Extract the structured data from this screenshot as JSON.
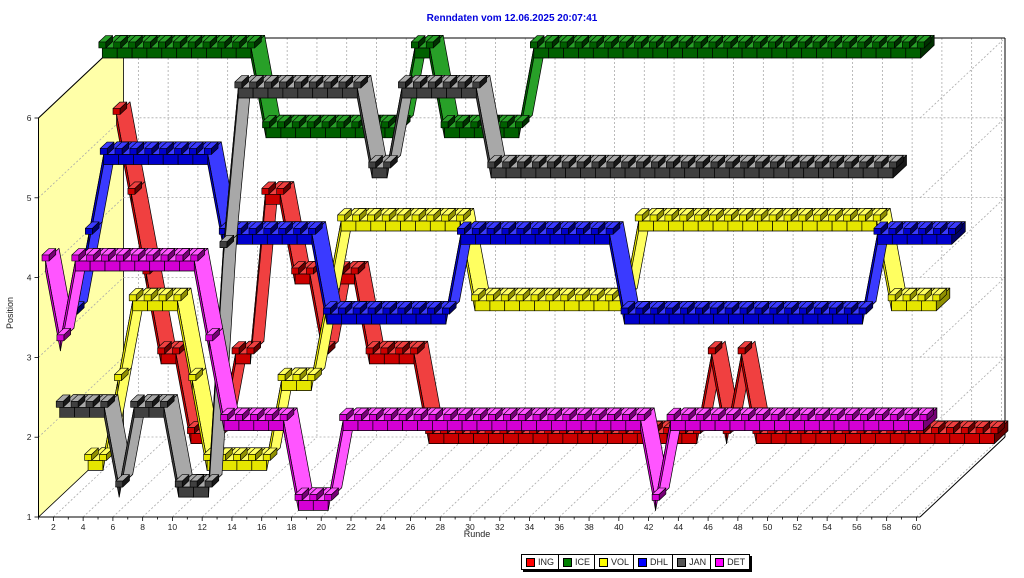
{
  "page": {
    "background": "#ffffff"
  },
  "chart_data": {
    "type": "line3d",
    "title": "Renndaten vom 12.06.2025 20:07:41",
    "title_color": "#0000dd",
    "xlabel": "Runde",
    "ylabel": "Position",
    "x_ticks": [
      2,
      4,
      6,
      8,
      10,
      12,
      14,
      16,
      18,
      20,
      22,
      24,
      26,
      28,
      30,
      32,
      34,
      36,
      38,
      40,
      42,
      44,
      46,
      48,
      50,
      52,
      54,
      56,
      58,
      60
    ],
    "y_ticks": [
      1,
      2,
      3,
      4,
      5,
      6
    ],
    "xlim": [
      1,
      61
    ],
    "ylim": [
      1,
      6
    ],
    "grid": "dashed",
    "grid_color": "#aaaaaa",
    "wall_highlight_color": "#ffffa8",
    "legend_position": "bottom-center",
    "series": [
      {
        "name": "ING",
        "legend_color": "#ff0000",
        "top": "#f04040",
        "front": "#cc0000",
        "dark": "#660000",
        "depth_slot": 5,
        "positions": [
          5,
          4,
          3,
          2,
          2,
          1,
          1,
          1,
          2,
          2,
          4,
          4,
          3,
          3,
          2,
          3,
          3,
          2,
          2,
          2,
          2,
          1,
          1,
          1,
          1,
          1,
          1,
          1,
          1,
          1,
          1,
          1,
          1,
          1,
          1,
          1,
          1,
          1,
          1,
          1,
          2,
          1,
          2,
          1,
          1,
          1,
          1,
          1,
          1,
          1,
          1,
          1,
          1,
          1,
          1,
          1,
          1,
          1,
          1,
          1
        ]
      },
      {
        "name": "ICE",
        "legend_color": "#008000",
        "top": "#28a028",
        "front": "#006000",
        "dark": "#003000",
        "depth_slot": 4,
        "positions": [
          6,
          6,
          6,
          6,
          6,
          6,
          6,
          6,
          6,
          6,
          6,
          5,
          5,
          5,
          5,
          5,
          5,
          5,
          5,
          5,
          5,
          6,
          6,
          5,
          5,
          5,
          5,
          5,
          5,
          6,
          6,
          6,
          6,
          6,
          6,
          6,
          6,
          6,
          6,
          6,
          6,
          6,
          6,
          6,
          6,
          6,
          6,
          6,
          6,
          6,
          6,
          6,
          6,
          6,
          6,
          6
        ]
      },
      {
        "name": "VOL",
        "legend_color": "#ffff00",
        "top": "#ffff60",
        "front": "#e6e600",
        "dark": "#909000",
        "depth_slot": 3,
        "positions": [
          1,
          1,
          2,
          3,
          3,
          3,
          3,
          2,
          1,
          1,
          1,
          1,
          1,
          2,
          2,
          2,
          3,
          4,
          4,
          4,
          4,
          4,
          4,
          4,
          4,
          4,
          3,
          3,
          3,
          3,
          3,
          3,
          3,
          3,
          3,
          3,
          3,
          4,
          4,
          4,
          4,
          4,
          4,
          4,
          4,
          4,
          4,
          4,
          4,
          4,
          4,
          4,
          4,
          4,
          3,
          3,
          3,
          3
        ]
      },
      {
        "name": "DHL",
        "legend_color": "#0000ff",
        "top": "#3a3aff",
        "front": "#0000cc",
        "dark": "#000066",
        "depth_slot": 2,
        "positions": [
          3,
          4,
          5,
          5,
          5,
          5,
          5,
          5,
          5,
          5,
          4,
          4,
          4,
          4,
          4,
          4,
          4,
          3,
          3,
          3,
          3,
          3,
          3,
          3,
          3,
          3,
          4,
          4,
          4,
          4,
          4,
          4,
          4,
          4,
          4,
          4,
          4,
          3,
          3,
          3,
          3,
          3,
          3,
          3,
          3,
          3,
          3,
          3,
          3,
          3,
          3,
          3,
          3,
          3,
          4,
          4,
          4,
          4,
          4,
          4
        ]
      },
      {
        "name": "JAN",
        "legend_color": "#555555",
        "top": "#a8a8a8",
        "front": "#404040",
        "dark": "#181818",
        "depth_slot": 1,
        "positions": [
          2,
          2,
          2,
          2,
          1,
          2,
          2,
          2,
          1,
          1,
          1,
          4,
          6,
          6,
          6,
          6,
          6,
          6,
          6,
          6,
          6,
          5,
          5,
          6,
          6,
          6,
          6,
          6,
          6,
          5,
          5,
          5,
          5,
          5,
          5,
          5,
          5,
          5,
          5,
          5,
          5,
          5,
          5,
          5,
          5,
          5,
          5,
          5,
          5,
          5,
          5,
          5,
          5,
          5,
          5,
          5,
          5
        ]
      },
      {
        "name": "DET",
        "legend_color": "#ff00ff",
        "top": "#ff55ff",
        "front": "#d400d4",
        "dark": "#770077",
        "depth_slot": 0,
        "positions": [
          4,
          3,
          4,
          4,
          4,
          4,
          4,
          4,
          4,
          4,
          4,
          3,
          2,
          2,
          2,
          2,
          2,
          1,
          1,
          1,
          2,
          2,
          2,
          2,
          2,
          2,
          2,
          2,
          2,
          2,
          2,
          2,
          2,
          2,
          2,
          2,
          2,
          2,
          2,
          2,
          2,
          1,
          2,
          2,
          2,
          2,
          2,
          2,
          2,
          2,
          2,
          2,
          2,
          2,
          2,
          2,
          2,
          2,
          2,
          2
        ]
      }
    ]
  }
}
